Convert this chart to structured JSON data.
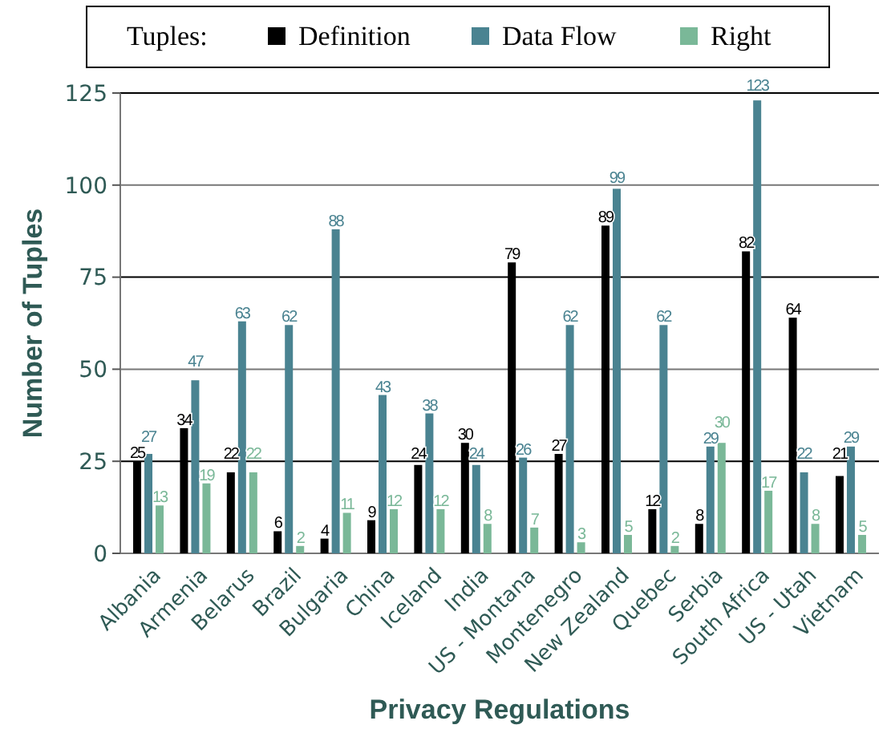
{
  "chart_data": {
    "type": "bar",
    "xlabel": "Privacy Regulations",
    "ylabel": "Number of Tuples",
    "legend_title": "Tuples:",
    "legend": "top",
    "grid": "y",
    "data_labels": true,
    "categories": [
      "Albania",
      "Armenia",
      "Belarus",
      "Brazil",
      "Bulgaria",
      "China",
      "Iceland",
      "India",
      "US - Montana",
      "Montenegro",
      "New Zealand",
      "Quebec",
      "Serbia",
      "South Africa",
      "US - Utah",
      "Vietnam"
    ],
    "ylim": [
      0,
      125
    ],
    "yticks": [
      0,
      25,
      50,
      75,
      100,
      125
    ],
    "series": [
      {
        "name": "Definition",
        "color": "#000000",
        "values": [
          25,
          34,
          22,
          6,
          4,
          9,
          24,
          30,
          79,
          27,
          89,
          12,
          8,
          82,
          64,
          21
        ]
      },
      {
        "name": "Data Flow",
        "color": "#4a8391",
        "values": [
          27,
          47,
          63,
          62,
          88,
          43,
          38,
          24,
          26,
          62,
          99,
          62,
          29,
          123,
          22,
          29
        ]
      },
      {
        "name": "Right",
        "color": "#7ab898",
        "values": [
          13,
          19,
          22,
          2,
          11,
          12,
          12,
          8,
          7,
          3,
          5,
          2,
          30,
          17,
          8,
          5
        ]
      }
    ]
  }
}
